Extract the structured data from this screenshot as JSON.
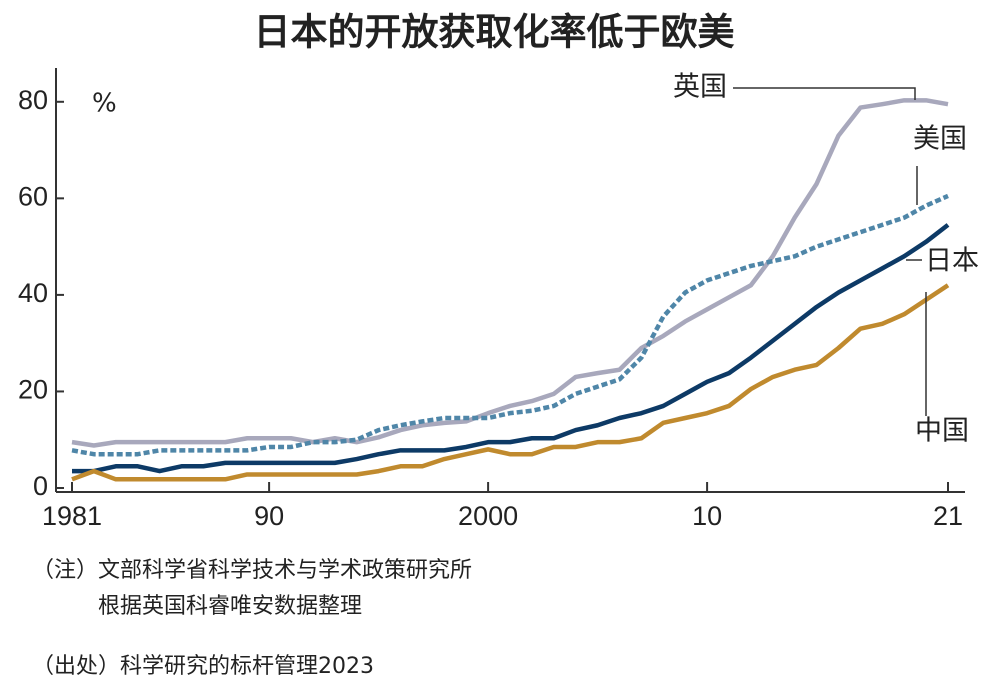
{
  "chart_data": {
    "type": "line",
    "title": "日本的开放获取化率低于欧美",
    "y_unit": "%",
    "x": [
      1981,
      1982,
      1983,
      1984,
      1985,
      1986,
      1987,
      1988,
      1989,
      1990,
      1991,
      1992,
      1993,
      1994,
      1995,
      1996,
      1997,
      1998,
      1999,
      2000,
      2001,
      2002,
      2003,
      2004,
      2005,
      2006,
      2007,
      2008,
      2009,
      2010,
      2011,
      2012,
      2013,
      2014,
      2015,
      2016,
      2017,
      2018,
      2019,
      2020,
      2021
    ],
    "xlim": [
      1981,
      2021
    ],
    "xticks": [
      {
        "value": 1981,
        "label": "1981"
      },
      {
        "value": 1990,
        "label": "90"
      },
      2000,
      {
        "value": 2010,
        "label": "10"
      },
      {
        "value": 2021,
        "label": "21"
      }
    ],
    "ylim": [
      0,
      87
    ],
    "yticks": [
      0,
      20,
      40,
      60,
      80
    ],
    "series": [
      {
        "name": "英国",
        "color": "#a8a8bc",
        "values": [
          9.5,
          8.8,
          9.5,
          9.5,
          9.5,
          9.5,
          9.5,
          9.5,
          10.3,
          10.3,
          10.3,
          9.5,
          10.3,
          9.5,
          10.5,
          12,
          13,
          13.5,
          13.8,
          15.5,
          17,
          18,
          19.5,
          23,
          23.8,
          24.5,
          29,
          31.5,
          34.5,
          37,
          39.5,
          42,
          48,
          56,
          63,
          73,
          78.8,
          79.5,
          80.3,
          80.3,
          79.5
        ]
      },
      {
        "name": "美国",
        "color": "#4f86a8",
        "dashed": true,
        "values": [
          7.8,
          7,
          7,
          7,
          7.8,
          7.8,
          7.8,
          7.8,
          7.8,
          8.5,
          8.5,
          9.5,
          9.5,
          10,
          12,
          13,
          13.8,
          14.5,
          14.5,
          14.5,
          15.5,
          16,
          17,
          19.5,
          21,
          22.5,
          27,
          35.5,
          40.5,
          43,
          44.5,
          46,
          47,
          48,
          50,
          51.5,
          53,
          54.5,
          56,
          58.5,
          60.5
        ]
      },
      {
        "name": "日本",
        "color": "#0d3a66",
        "values": [
          3.5,
          3.5,
          4.5,
          4.5,
          3.5,
          4.5,
          4.5,
          5.2,
          5.2,
          5.2,
          5.2,
          5.2,
          5.2,
          6,
          7,
          7.8,
          7.8,
          7.8,
          8.5,
          9.5,
          9.5,
          10.3,
          10.3,
          12,
          13,
          14.5,
          15.5,
          17,
          19.5,
          22,
          23.8,
          27,
          30.5,
          34,
          37.5,
          40.5,
          43,
          45.5,
          48,
          51,
          54.5
        ]
      },
      {
        "name": "中国",
        "color": "#c08a2e",
        "values": [
          1.8,
          3.5,
          1.8,
          1.8,
          1.8,
          1.8,
          1.8,
          1.8,
          2.8,
          2.8,
          2.8,
          2.8,
          2.8,
          2.8,
          3.5,
          4.5,
          4.5,
          6,
          7,
          8,
          7,
          7,
          8.5,
          8.5,
          9.5,
          9.5,
          10.3,
          13.5,
          14.5,
          15.5,
          17,
          20.5,
          23,
          24.5,
          25.5,
          29,
          33,
          34,
          36,
          39,
          42
        ]
      }
    ],
    "notes": [
      "（注）文部科学省科学技术与学术政策研究所",
      "　　　根据英国科睿唯安数据整理",
      "（出处）科学研究的标杆管理2023"
    ]
  }
}
